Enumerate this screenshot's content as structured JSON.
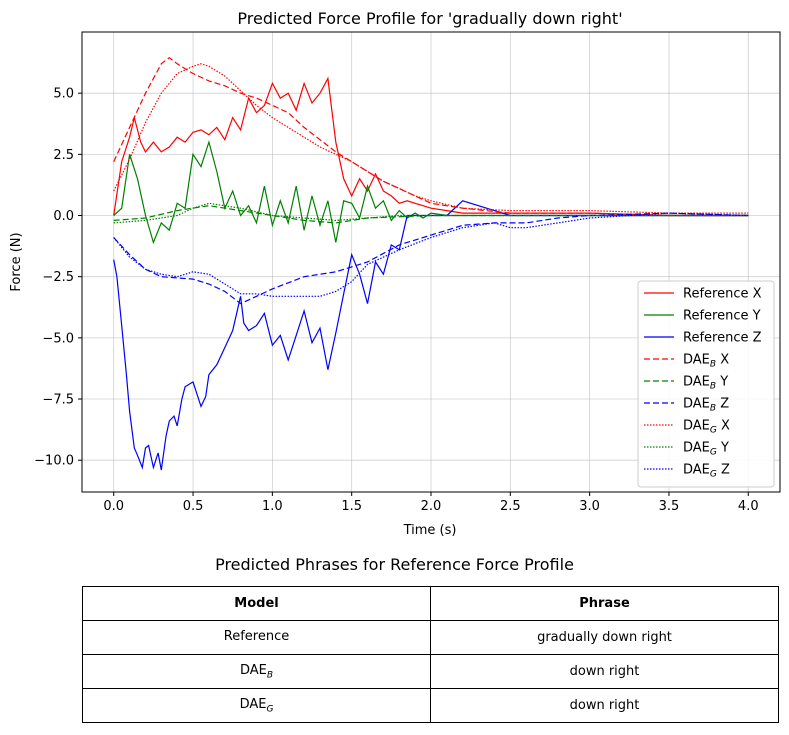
{
  "chart_data": {
    "type": "line",
    "title": "Predicted Force Profile for 'gradually down right'",
    "xlabel": "Time (s)",
    "ylabel": "Force (N)",
    "xlim": [
      -0.2,
      4.2
    ],
    "ylim": [
      -11.3,
      7.5
    ],
    "xticks": [
      0.0,
      0.5,
      1.0,
      1.5,
      2.0,
      2.5,
      3.0,
      3.5,
      4.0
    ],
    "xtick_labels": [
      "0.0",
      "0.5",
      "1.0",
      "1.5",
      "2.0",
      "2.5",
      "3.0",
      "3.5",
      "4.0"
    ],
    "yticks": [
      -10.0,
      -7.5,
      -5.0,
      -2.5,
      0.0,
      2.5,
      5.0
    ],
    "ytick_labels": [
      "−10.0",
      "−7.5",
      "−5.0",
      "−2.5",
      "0.0",
      "2.5",
      "5.0"
    ],
    "grid": true,
    "legend_position": "lower-right",
    "series": [
      {
        "name": "Reference X",
        "base": "Reference",
        "suffix": "",
        "axis": "X",
        "color": "#ff0000",
        "dash": "solid",
        "x": [
          0,
          0.05,
          0.1,
          0.13,
          0.17,
          0.2,
          0.25,
          0.3,
          0.35,
          0.4,
          0.45,
          0.5,
          0.55,
          0.6,
          0.65,
          0.7,
          0.75,
          0.8,
          0.85,
          0.9,
          0.95,
          1.0,
          1.05,
          1.1,
          1.15,
          1.2,
          1.25,
          1.3,
          1.35,
          1.4,
          1.45,
          1.5,
          1.55,
          1.6,
          1.65,
          1.7,
          1.75,
          1.8,
          1.85,
          1.9,
          1.95,
          2.0,
          2.1,
          2.2,
          2.5,
          3.0,
          3.5,
          4.0
        ],
        "y": [
          0,
          2.2,
          3.2,
          4.0,
          3.0,
          2.6,
          3.0,
          2.6,
          2.8,
          3.2,
          3.0,
          3.4,
          3.5,
          3.3,
          3.6,
          3.1,
          4.0,
          3.5,
          4.8,
          4.2,
          4.5,
          5.4,
          4.8,
          5.0,
          4.3,
          5.4,
          4.6,
          5.0,
          5.6,
          3.0,
          1.5,
          0.8,
          1.5,
          1.0,
          1.7,
          1.0,
          0.8,
          0.5,
          0.6,
          0.5,
          0.4,
          0.3,
          0.2,
          0.1,
          0.1,
          0.1,
          0.0,
          0.0
        ]
      },
      {
        "name": "Reference Y",
        "base": "Reference",
        "suffix": "",
        "axis": "Y",
        "color": "#008000",
        "dash": "solid",
        "x": [
          0,
          0.05,
          0.1,
          0.15,
          0.2,
          0.25,
          0.3,
          0.35,
          0.4,
          0.45,
          0.5,
          0.55,
          0.6,
          0.65,
          0.7,
          0.75,
          0.8,
          0.85,
          0.9,
          0.95,
          1.0,
          1.05,
          1.1,
          1.15,
          1.2,
          1.25,
          1.3,
          1.35,
          1.4,
          1.45,
          1.5,
          1.55,
          1.6,
          1.65,
          1.7,
          1.75,
          1.8,
          1.85,
          1.9,
          1.95,
          2.0,
          2.1,
          2.2,
          2.5,
          3.0,
          3.5,
          4.0
        ],
        "y": [
          0,
          0.3,
          2.5,
          1.5,
          0.0,
          -1.1,
          -0.3,
          -0.6,
          0.5,
          0.3,
          2.5,
          2.0,
          3.0,
          1.8,
          0.3,
          1.0,
          0.0,
          0.4,
          -0.3,
          1.2,
          -0.4,
          0.6,
          -0.3,
          1.2,
          -0.6,
          0.8,
          -0.4,
          0.6,
          -1.1,
          0.6,
          0.5,
          -0.1,
          1.2,
          0.3,
          0.6,
          -0.2,
          0.2,
          -0.1,
          0.1,
          -0.1,
          0.1,
          0.0,
          0.0,
          0.0,
          0.0,
          0.0,
          0.0
        ]
      },
      {
        "name": "Reference Z",
        "base": "Reference",
        "suffix": "",
        "axis": "Z",
        "color": "#0000ff",
        "dash": "solid",
        "x": [
          0,
          0.02,
          0.05,
          0.08,
          0.1,
          0.13,
          0.15,
          0.18,
          0.2,
          0.22,
          0.25,
          0.28,
          0.3,
          0.33,
          0.35,
          0.38,
          0.4,
          0.43,
          0.45,
          0.5,
          0.55,
          0.58,
          0.6,
          0.65,
          0.7,
          0.75,
          0.8,
          0.82,
          0.85,
          0.9,
          0.95,
          1.0,
          1.05,
          1.1,
          1.15,
          1.2,
          1.25,
          1.3,
          1.35,
          1.4,
          1.45,
          1.5,
          1.55,
          1.6,
          1.65,
          1.7,
          1.75,
          1.8,
          1.85,
          1.9,
          2.0,
          2.1,
          2.2,
          2.5,
          3.0,
          3.5,
          4.0
        ],
        "y": [
          -1.8,
          -2.5,
          -4.5,
          -6.5,
          -8.0,
          -9.5,
          -9.8,
          -10.3,
          -9.5,
          -9.4,
          -10.3,
          -9.7,
          -10.4,
          -9.0,
          -8.4,
          -8.2,
          -8.6,
          -7.5,
          -7.0,
          -6.8,
          -7.8,
          -7.4,
          -6.5,
          -6.1,
          -5.4,
          -4.7,
          -3.3,
          -4.4,
          -4.7,
          -4.5,
          -4.0,
          -5.3,
          -4.9,
          -5.9,
          -4.9,
          -3.9,
          -5.2,
          -4.6,
          -6.3,
          -4.8,
          -3.2,
          -1.6,
          -2.4,
          -3.6,
          -1.9,
          -2.4,
          -1.2,
          -1.4,
          0.0,
          0.0,
          0.0,
          0.0,
          0.6,
          0.0,
          0.0,
          0.0,
          0.0
        ]
      },
      {
        "name": "DAE_B X",
        "base": "DAE",
        "suffix": "B",
        "axis": "X",
        "color": "#ff0000",
        "dash": "6,3",
        "x": [
          0,
          0.1,
          0.2,
          0.3,
          0.35,
          0.4,
          0.5,
          0.6,
          0.7,
          0.8,
          0.9,
          1.0,
          1.1,
          1.2,
          1.3,
          1.4,
          1.5,
          1.6,
          1.7,
          1.8,
          1.9,
          2.0,
          2.2,
          2.5,
          2.8,
          3.0,
          3.5,
          4.0
        ],
        "y": [
          2.2,
          3.6,
          5.0,
          6.2,
          6.45,
          6.2,
          5.8,
          5.5,
          5.3,
          5.0,
          4.8,
          4.5,
          4.2,
          3.6,
          3.1,
          2.6,
          2.2,
          1.8,
          1.4,
          1.1,
          0.8,
          0.5,
          0.3,
          0.1,
          0.1,
          0.1,
          0.0,
          0.0
        ]
      },
      {
        "name": "DAE_B Y",
        "base": "DAE",
        "suffix": "B",
        "axis": "Y",
        "color": "#008000",
        "dash": "6,3",
        "x": [
          0,
          0.2,
          0.4,
          0.6,
          0.8,
          1.0,
          1.2,
          1.4,
          1.6,
          2.0,
          2.5,
          3.0,
          4.0
        ],
        "y": [
          -0.2,
          -0.1,
          0.2,
          0.4,
          0.2,
          0.0,
          -0.2,
          -0.3,
          -0.1,
          0.0,
          0.0,
          0.0,
          0.0
        ]
      },
      {
        "name": "DAE_B Z",
        "base": "DAE",
        "suffix": "B",
        "axis": "Z",
        "color": "#0000ff",
        "dash": "6,3",
        "x": [
          0,
          0.1,
          0.2,
          0.3,
          0.5,
          0.6,
          0.7,
          0.8,
          0.9,
          1.0,
          1.2,
          1.4,
          1.6,
          1.8,
          2.0,
          2.2,
          2.4,
          2.5,
          2.6,
          2.8,
          3.0,
          3.5,
          4.0
        ],
        "y": [
          -0.9,
          -1.6,
          -2.2,
          -2.5,
          -2.6,
          -2.8,
          -3.1,
          -3.6,
          -3.3,
          -3.0,
          -2.5,
          -2.3,
          -1.9,
          -1.2,
          -0.8,
          -0.4,
          -0.3,
          -0.3,
          -0.3,
          -0.1,
          0.0,
          0.1,
          0.0
        ]
      },
      {
        "name": "DAE_G X",
        "base": "DAE",
        "suffix": "G",
        "axis": "X",
        "color": "#ff0000",
        "dash": "1.5,1.5",
        "x": [
          0,
          0.1,
          0.2,
          0.3,
          0.4,
          0.5,
          0.55,
          0.6,
          0.7,
          0.8,
          0.9,
          1.0,
          1.1,
          1.2,
          1.3,
          1.4,
          1.5,
          1.6,
          1.7,
          1.8,
          1.9,
          2.0,
          2.2,
          2.5,
          3.0,
          3.5,
          4.0
        ],
        "y": [
          1.0,
          2.3,
          3.8,
          5.0,
          5.8,
          6.1,
          6.2,
          6.1,
          5.7,
          5.1,
          4.5,
          4.0,
          3.6,
          3.2,
          2.8,
          2.5,
          2.2,
          1.8,
          1.4,
          1.1,
          0.8,
          0.6,
          0.3,
          0.2,
          0.2,
          0.1,
          0.1
        ]
      },
      {
        "name": "DAE_G Y",
        "base": "DAE",
        "suffix": "G",
        "axis": "Y",
        "color": "#008000",
        "dash": "1.5,1.5",
        "x": [
          0,
          0.2,
          0.4,
          0.5,
          0.6,
          0.8,
          1.0,
          1.2,
          1.4,
          1.6,
          1.8,
          2.0,
          2.5,
          3.0,
          4.0
        ],
        "y": [
          -0.3,
          -0.2,
          0.0,
          0.3,
          0.5,
          0.3,
          0.0,
          -0.1,
          -0.2,
          -0.1,
          0.0,
          0.0,
          0.0,
          0.0,
          0.0
        ]
      },
      {
        "name": "DAE_G Z",
        "base": "DAE",
        "suffix": "G",
        "axis": "Z",
        "color": "#0000ff",
        "dash": "1.5,1.5",
        "x": [
          0,
          0.1,
          0.2,
          0.3,
          0.4,
          0.5,
          0.6,
          0.7,
          0.8,
          0.9,
          1.0,
          1.2,
          1.3,
          1.4,
          1.5,
          1.6,
          1.8,
          2.0,
          2.2,
          2.4,
          2.5,
          2.6,
          2.8,
          3.0,
          3.5,
          4.0
        ],
        "y": [
          -0.9,
          -1.7,
          -2.2,
          -2.4,
          -2.5,
          -2.3,
          -2.4,
          -2.8,
          -3.2,
          -3.2,
          -3.3,
          -3.3,
          -3.3,
          -3.1,
          -2.7,
          -2.0,
          -1.4,
          -0.9,
          -0.5,
          -0.3,
          -0.5,
          -0.5,
          -0.3,
          -0.1,
          0.1,
          0.0
        ]
      }
    ]
  },
  "table": {
    "title": "Predicted Phrases for Reference Force Profile",
    "headers": {
      "model": "Model",
      "phrase": "Phrase"
    },
    "rows": [
      {
        "model": "Reference",
        "suffix": "",
        "phrase": "gradually down right"
      },
      {
        "model": "DAE",
        "suffix": "B",
        "phrase": "down right"
      },
      {
        "model": "DAE",
        "suffix": "G",
        "phrase": "down right"
      }
    ]
  }
}
